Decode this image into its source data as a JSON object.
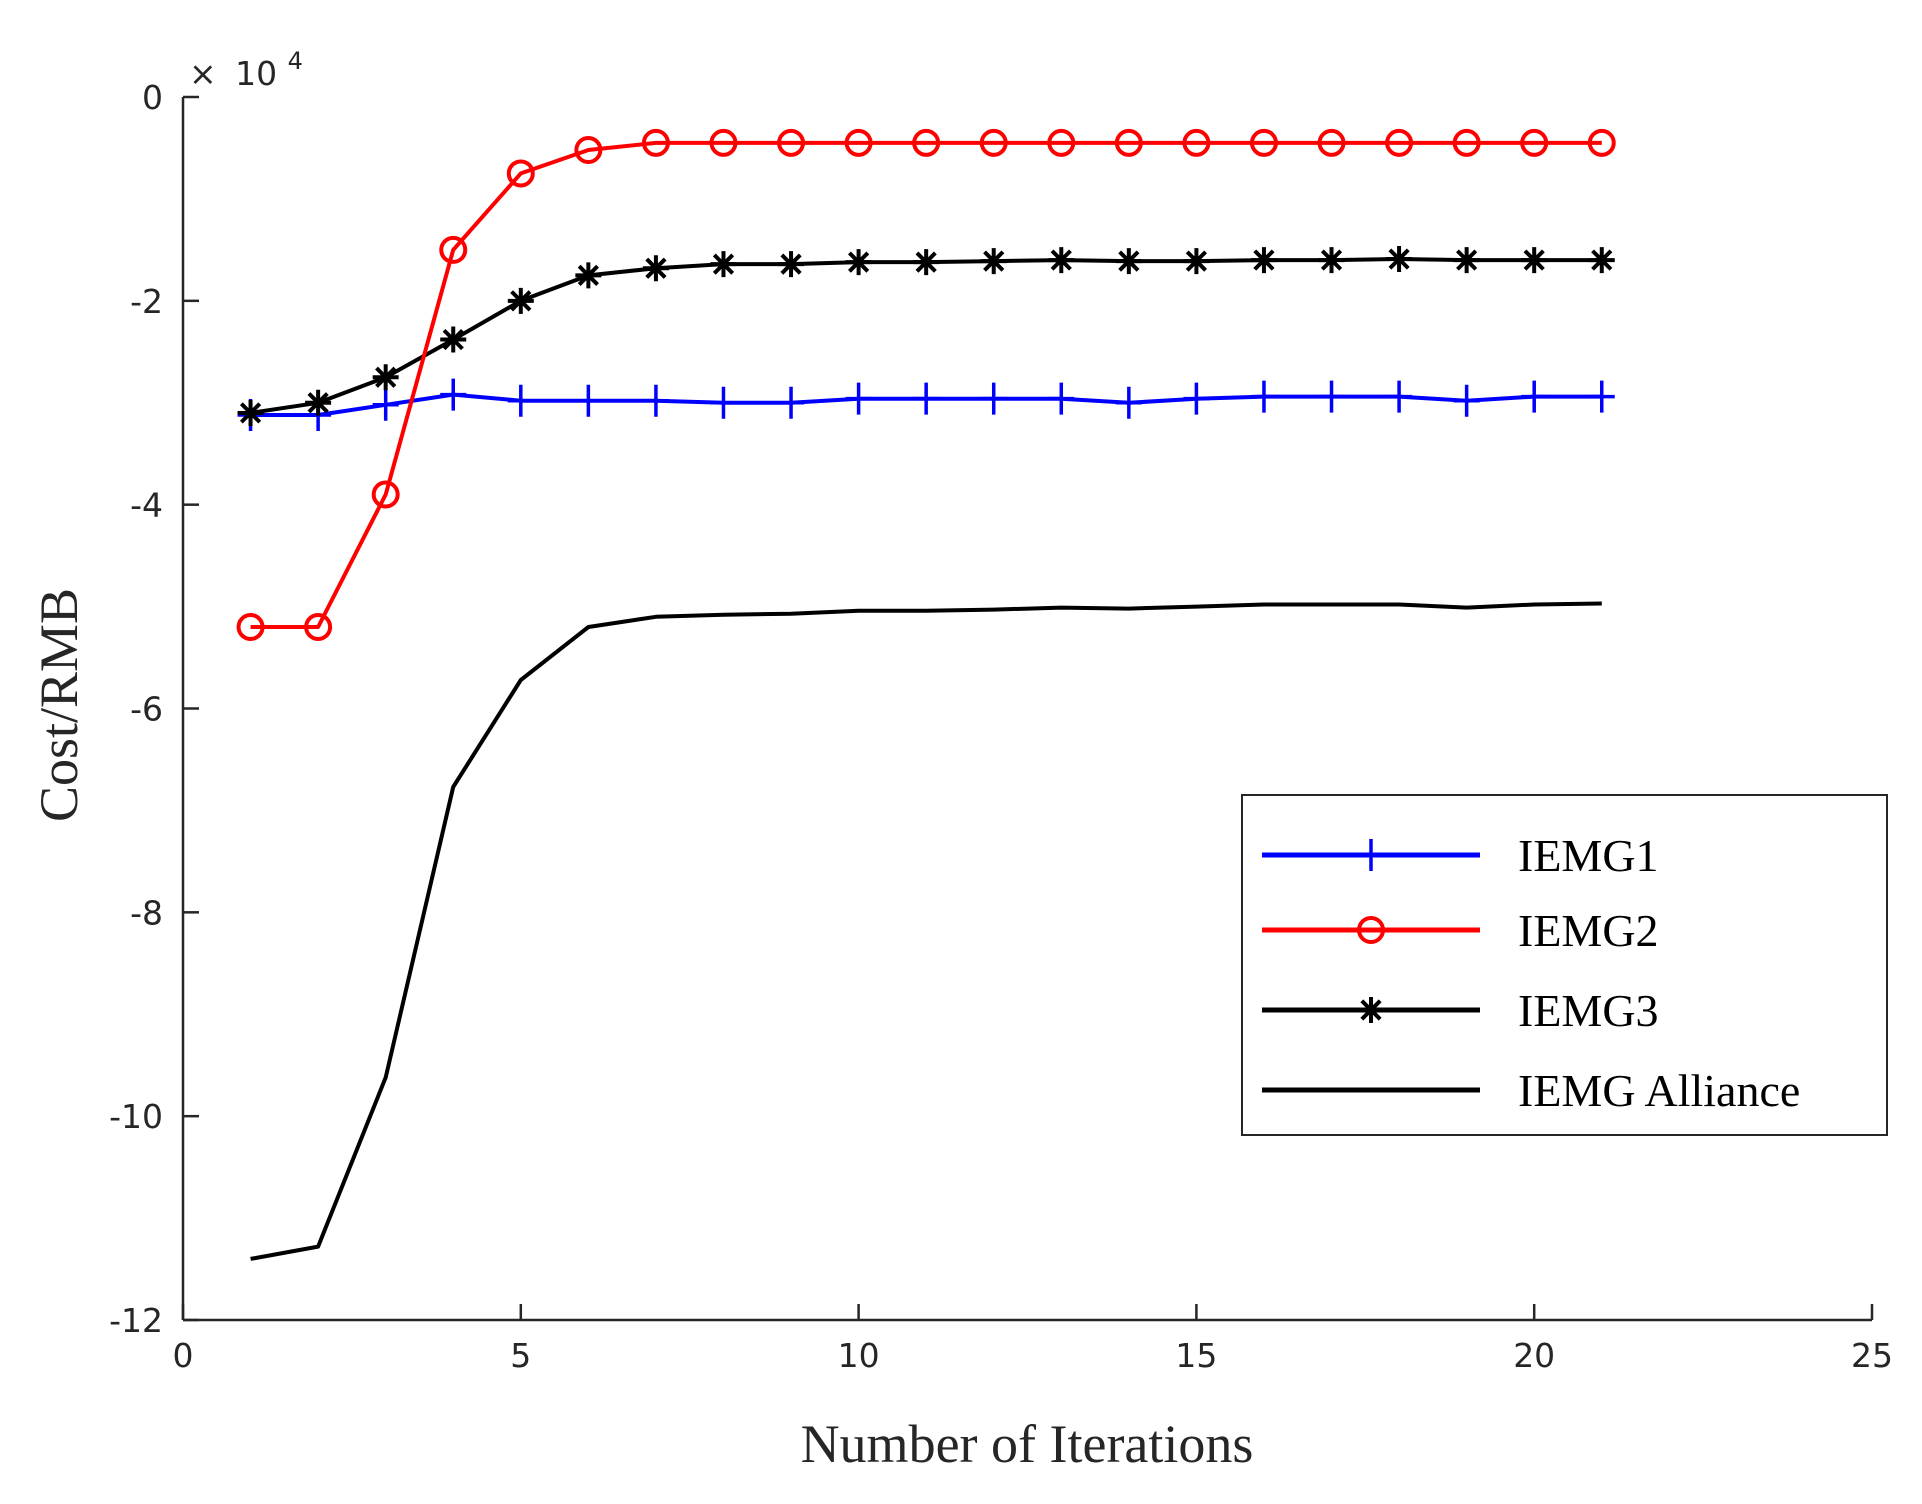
{
  "chart_data": {
    "type": "line",
    "title": "",
    "xlabel": "Number of Iterations",
    "ylabel": "Cost/RMB",
    "xlim": [
      0,
      25
    ],
    "ylim": [
      -12,
      0
    ],
    "xticks": [
      0,
      5,
      10,
      15,
      20,
      25
    ],
    "yticks": [
      0,
      -2,
      -4,
      -6,
      -8,
      -10,
      -12
    ],
    "xtick_labels": [
      "0",
      "5",
      "10",
      "15",
      "20",
      "25"
    ],
    "ytick_labels": [
      "0",
      "-2",
      "-4",
      "-6",
      "-8",
      "-10",
      "-12"
    ],
    "y_multiplier_prefix": "×",
    "y_multiplier_base": "10",
    "y_multiplier_exp": "4",
    "grid": false,
    "legend_position": "lower-right",
    "x": [
      1,
      2,
      3,
      4,
      5,
      6,
      7,
      8,
      9,
      10,
      11,
      12,
      13,
      14,
      15,
      16,
      17,
      18,
      19,
      20,
      21
    ],
    "series": [
      {
        "name": "IEMG1",
        "color": "#0000ff",
        "marker": "plus",
        "values": [
          -3.12,
          -3.12,
          -3.02,
          -2.92,
          -2.98,
          -2.98,
          -2.98,
          -3.0,
          -3.0,
          -2.96,
          -2.96,
          -2.96,
          -2.96,
          -3.0,
          -2.96,
          -2.94,
          -2.94,
          -2.94,
          -2.98,
          -2.94,
          -2.94
        ]
      },
      {
        "name": "IEMG2",
        "color": "#ff0000",
        "marker": "circle",
        "values": [
          -5.2,
          -5.2,
          -3.9,
          -1.5,
          -0.75,
          -0.52,
          -0.45,
          -0.45,
          -0.45,
          -0.45,
          -0.45,
          -0.45,
          -0.45,
          -0.45,
          -0.45,
          -0.45,
          -0.45,
          -0.45,
          -0.45,
          -0.45,
          -0.45
        ]
      },
      {
        "name": "IEMG3",
        "color": "#000000",
        "marker": "asterisk",
        "values": [
          -3.1,
          -3.0,
          -2.75,
          -2.38,
          -2.0,
          -1.75,
          -1.68,
          -1.64,
          -1.64,
          -1.62,
          -1.62,
          -1.61,
          -1.6,
          -1.61,
          -1.61,
          -1.6,
          -1.6,
          -1.59,
          -1.6,
          -1.6,
          -1.6
        ]
      },
      {
        "name": "IEMG Alliance",
        "color": "#000000",
        "marker": "none",
        "values": [
          -11.4,
          -11.28,
          -9.62,
          -6.77,
          -5.72,
          -5.2,
          -5.1,
          -5.08,
          -5.07,
          -5.04,
          -5.04,
          -5.03,
          -5.01,
          -5.02,
          -5.0,
          -4.98,
          -4.98,
          -4.98,
          -5.01,
          -4.98,
          -4.97
        ]
      }
    ]
  }
}
